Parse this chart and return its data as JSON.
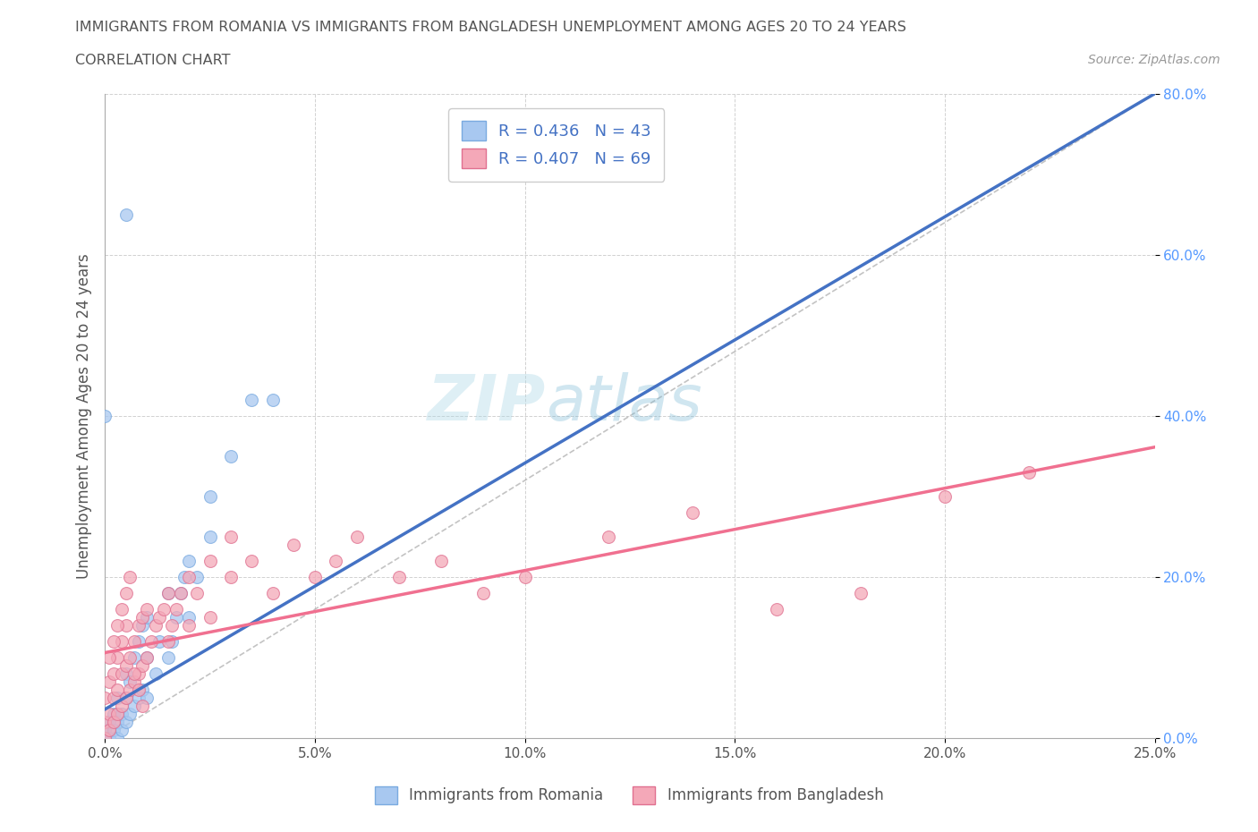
{
  "title": "IMMIGRANTS FROM ROMANIA VS IMMIGRANTS FROM BANGLADESH UNEMPLOYMENT AMONG AGES 20 TO 24 YEARS",
  "subtitle": "CORRELATION CHART",
  "source": "Source: ZipAtlas.com",
  "ylabel": "Unemployment Among Ages 20 to 24 years",
  "xlim": [
    0.0,
    0.25
  ],
  "ylim": [
    0.0,
    0.8
  ],
  "xticks": [
    0.0,
    0.05,
    0.1,
    0.15,
    0.2,
    0.25
  ],
  "yticks": [
    0.0,
    0.2,
    0.4,
    0.6,
    0.8
  ],
  "xticklabels": [
    "0.0%",
    "5.0%",
    "10.0%",
    "15.0%",
    "20.0%",
    "25.0%"
  ],
  "yticklabels": [
    "0.0%",
    "20.0%",
    "40.0%",
    "60.0%",
    "80.0%"
  ],
  "romania_color": "#a8c8f0",
  "bangladesh_color": "#f4a8b8",
  "romania_line_color": "#4472C4",
  "bangladesh_line_color": "#f07090",
  "diag_color": "#aaaaaa",
  "legend_text_color": "#4472C4",
  "romania_R": 0.436,
  "romania_N": 43,
  "bangladesh_R": 0.407,
  "bangladesh_N": 69,
  "watermark_zip": "ZIP",
  "watermark_atlas": "atlas",
  "background_color": "#ffffff",
  "grid_color": "#cccccc",
  "romania_x": [
    0.0,
    0.0,
    0.001,
    0.001,
    0.002,
    0.002,
    0.003,
    0.003,
    0.003,
    0.004,
    0.004,
    0.005,
    0.005,
    0.005,
    0.006,
    0.006,
    0.007,
    0.007,
    0.008,
    0.008,
    0.009,
    0.009,
    0.01,
    0.01,
    0.01,
    0.012,
    0.013,
    0.015,
    0.015,
    0.016,
    0.017,
    0.018,
    0.019,
    0.02,
    0.02,
    0.022,
    0.025,
    0.025,
    0.03,
    0.035,
    0.04,
    0.0,
    0.005
  ],
  "romania_y": [
    0.0,
    0.01,
    0.0,
    0.02,
    0.01,
    0.03,
    0.0,
    0.02,
    0.05,
    0.01,
    0.03,
    0.02,
    0.05,
    0.08,
    0.03,
    0.07,
    0.04,
    0.1,
    0.05,
    0.12,
    0.06,
    0.14,
    0.05,
    0.1,
    0.15,
    0.08,
    0.12,
    0.1,
    0.18,
    0.12,
    0.15,
    0.18,
    0.2,
    0.15,
    0.22,
    0.2,
    0.25,
    0.3,
    0.35,
    0.42,
    0.42,
    0.4,
    0.65
  ],
  "bangladesh_x": [
    0.0,
    0.0,
    0.0,
    0.001,
    0.001,
    0.001,
    0.002,
    0.002,
    0.002,
    0.003,
    0.003,
    0.003,
    0.004,
    0.004,
    0.004,
    0.005,
    0.005,
    0.005,
    0.006,
    0.006,
    0.007,
    0.007,
    0.008,
    0.008,
    0.009,
    0.009,
    0.01,
    0.01,
    0.011,
    0.012,
    0.013,
    0.014,
    0.015,
    0.015,
    0.016,
    0.017,
    0.018,
    0.02,
    0.02,
    0.022,
    0.025,
    0.025,
    0.03,
    0.03,
    0.035,
    0.04,
    0.045,
    0.05,
    0.055,
    0.06,
    0.07,
    0.08,
    0.09,
    0.1,
    0.12,
    0.14,
    0.16,
    0.18,
    0.2,
    0.22,
    0.001,
    0.002,
    0.003,
    0.004,
    0.005,
    0.006,
    0.007,
    0.008,
    0.009
  ],
  "bangladesh_y": [
    0.0,
    0.02,
    0.05,
    0.01,
    0.03,
    0.07,
    0.02,
    0.05,
    0.08,
    0.03,
    0.06,
    0.1,
    0.04,
    0.08,
    0.12,
    0.05,
    0.09,
    0.14,
    0.06,
    0.1,
    0.07,
    0.12,
    0.08,
    0.14,
    0.09,
    0.15,
    0.1,
    0.16,
    0.12,
    0.14,
    0.15,
    0.16,
    0.12,
    0.18,
    0.14,
    0.16,
    0.18,
    0.14,
    0.2,
    0.18,
    0.22,
    0.15,
    0.2,
    0.25,
    0.22,
    0.18,
    0.24,
    0.2,
    0.22,
    0.25,
    0.2,
    0.22,
    0.18,
    0.2,
    0.25,
    0.28,
    0.16,
    0.18,
    0.3,
    0.33,
    0.1,
    0.12,
    0.14,
    0.16,
    0.18,
    0.2,
    0.08,
    0.06,
    0.04
  ]
}
